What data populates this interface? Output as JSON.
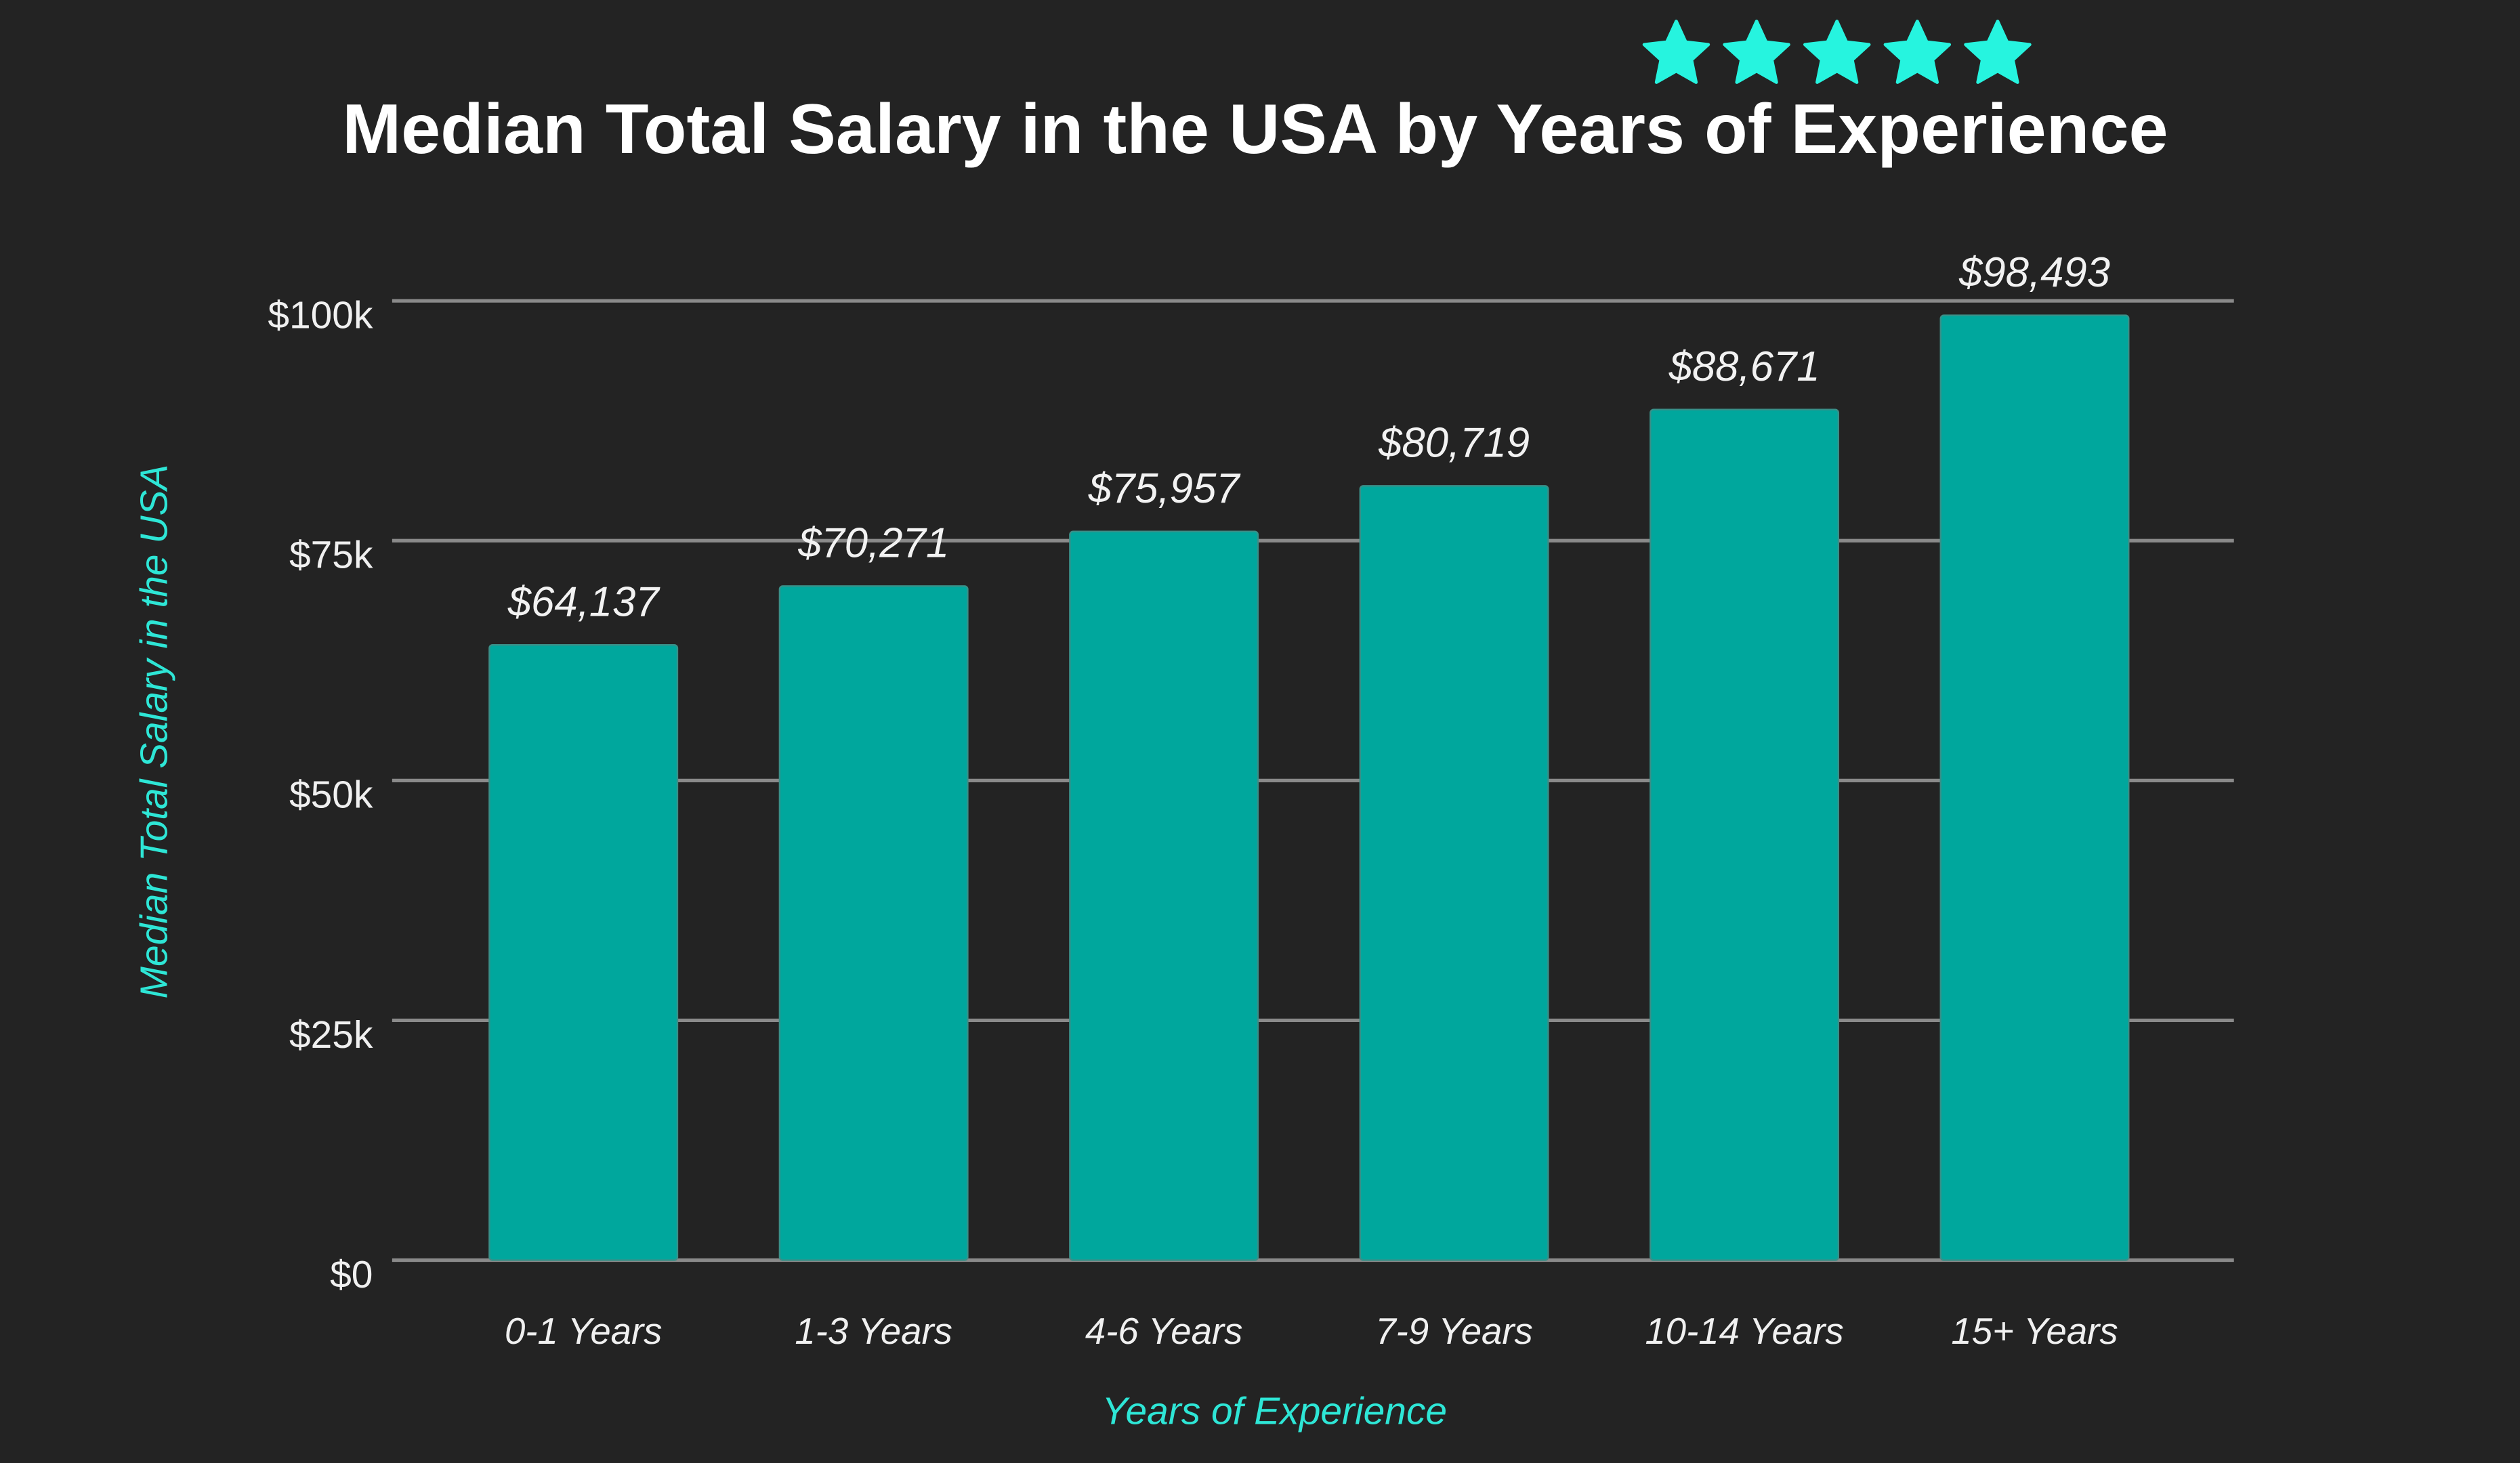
{
  "chart_data": {
    "type": "bar",
    "title": "Median Total Salary in the USA by Years of Experience",
    "xlabel": "Years of Experience",
    "ylabel": "Median Total Salary in the USA",
    "categories": [
      "0-1 Years",
      "1-3 Years",
      "4-6 Years",
      "7-9 Years",
      "10-14 Years",
      "15+ Years"
    ],
    "values": [
      64137,
      70271,
      75957,
      80719,
      88671,
      98493
    ],
    "data_labels": [
      "$64,137",
      "$70,271",
      "$75,957",
      "$80,719",
      "$88,671",
      "$98,493"
    ],
    "ylim": [
      0,
      100000
    ],
    "yticks": [
      0,
      25000,
      50000,
      75000,
      100000
    ],
    "ytick_labels": [
      "$0",
      "$25k",
      "$50k",
      "$75k",
      "$100k"
    ],
    "grid": true,
    "legend": "none",
    "colors": {
      "background": "#232323",
      "bar": "#00a79d",
      "accent": "#26f4df",
      "grid": "#8a8a8a"
    },
    "rating": {
      "icon": "star-icon",
      "count": 5,
      "filled": 5
    }
  }
}
